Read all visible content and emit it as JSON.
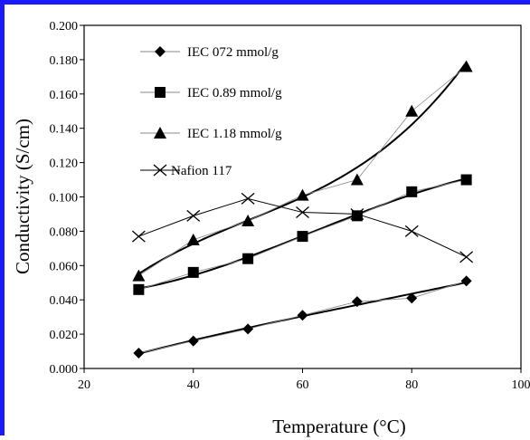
{
  "chart_data": {
    "type": "scatter",
    "xlabel": "Temperature (°C)",
    "ylabel": "Conductivity (S/cm)",
    "xlim": [
      20,
      100
    ],
    "ylim": [
      0,
      0.2
    ],
    "xticks": [
      20,
      40,
      60,
      80,
      100
    ],
    "yticks": [
      "0.000",
      "0.020",
      "0.040",
      "0.060",
      "0.080",
      "0.100",
      "0.120",
      "0.140",
      "0.160",
      "0.180",
      "0.200"
    ],
    "grid": false,
    "legend_position": "top-left",
    "series": [
      {
        "name": "IEC 072 mmol/g",
        "marker": "diamond",
        "color": "#000000",
        "trendline": true,
        "x": [
          30,
          40,
          50,
          60,
          70,
          80,
          90
        ],
        "y": [
          0.009,
          0.016,
          0.023,
          0.031,
          0.039,
          0.041,
          0.051
        ]
      },
      {
        "name": "IEC 0.89 mmol/g",
        "marker": "square",
        "color": "#000000",
        "trendline": true,
        "x": [
          30,
          40,
          50,
          60,
          70,
          80,
          90
        ],
        "y": [
          0.046,
          0.056,
          0.064,
          0.077,
          0.089,
          0.103,
          0.11
        ]
      },
      {
        "name": "IEC 1.18 mmol/g",
        "marker": "triangle",
        "color": "#000000",
        "trendline": true,
        "x": [
          30,
          40,
          50,
          60,
          70,
          80,
          90
        ],
        "y": [
          0.054,
          0.075,
          0.086,
          0.101,
          0.11,
          0.15,
          0.176
        ]
      },
      {
        "name": "Nafion 117",
        "marker": "x",
        "color": "#000000",
        "trendline": false,
        "x": [
          30,
          40,
          50,
          60,
          70,
          80,
          90
        ],
        "y": [
          0.077,
          0.089,
          0.099,
          0.091,
          0.09,
          0.08,
          0.065
        ]
      }
    ]
  }
}
